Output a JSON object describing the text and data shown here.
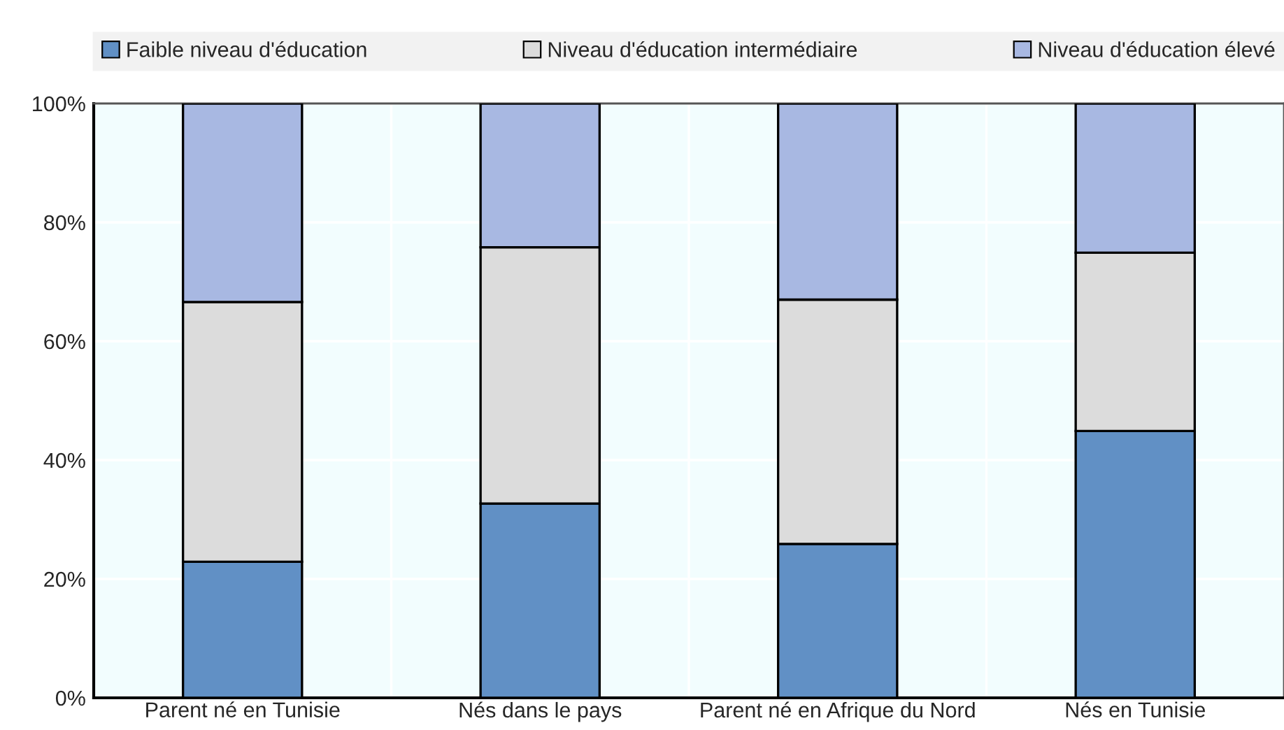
{
  "chart_data": {
    "type": "bar",
    "stacked": true,
    "categories": [
      "Parent né en Tunisie",
      "Nés dans le pays",
      "Parent né en Afrique du Nord",
      "Nés en Tunisie"
    ],
    "series": [
      {
        "name": "Faible niveau d'éducation",
        "color": "#6190c5",
        "values": [
          22.9,
          32.7,
          25.9,
          44.9
        ]
      },
      {
        "name": "Niveau d'éducation intermédiaire",
        "color": "#dcdcdc",
        "values": [
          43.7,
          43.1,
          41.1,
          30.0
        ]
      },
      {
        "name": "Niveau d'éducation élevé",
        "color": "#a8b8e2",
        "values": [
          33.4,
          24.2,
          33.0,
          25.1
        ]
      }
    ],
    "ylim": [
      0,
      100
    ],
    "yticks": [
      {
        "value": 0,
        "label": "0%"
      },
      {
        "value": 20,
        "label": "20%"
      },
      {
        "value": 40,
        "label": "40%"
      },
      {
        "value": 60,
        "label": "60%"
      },
      {
        "value": 80,
        "label": "80%"
      },
      {
        "value": 100,
        "label": "100%"
      }
    ],
    "grid": true,
    "legend": "top"
  }
}
